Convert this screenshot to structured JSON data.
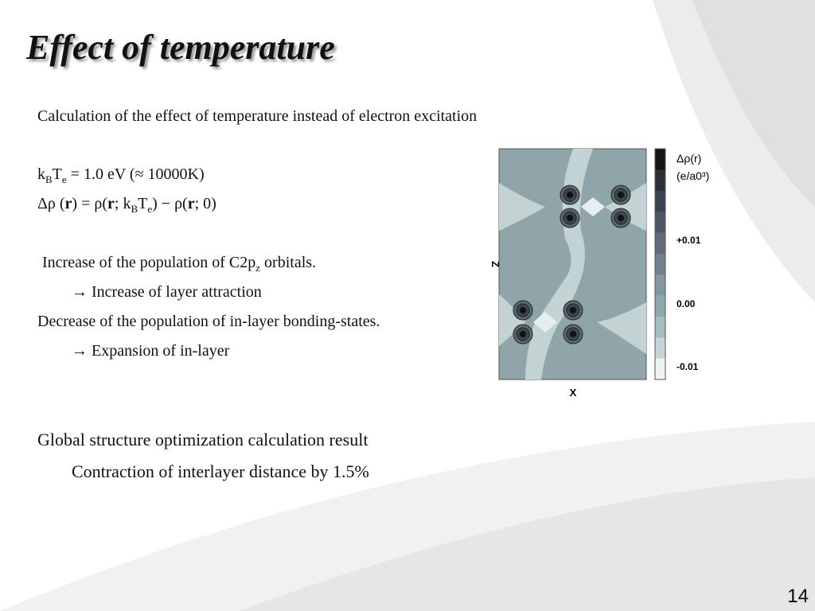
{
  "title": "Effect of temperature",
  "lines": [
    {
      "segments": [
        {
          "text": "Calculation of the effect of temperature instead of electron excitation"
        }
      ]
    },
    {
      "segments": [
        {
          "text": "k"
        },
        {
          "text": "B",
          "sub": true
        },
        {
          "text": "T"
        },
        {
          "text": "e",
          "sub": true
        },
        {
          "text": " = 1.0 eV (≈ 10000K)"
        }
      ]
    },
    {
      "segments": [
        {
          "text": "Δρ ("
        },
        {
          "text": "r",
          "bold": true
        },
        {
          "text": ") = ρ("
        },
        {
          "text": "r",
          "bold": true
        },
        {
          "text": "; k"
        },
        {
          "text": "B",
          "sub": true
        },
        {
          "text": "T"
        },
        {
          "text": "e",
          "sub": true
        },
        {
          "text": ") − ρ("
        },
        {
          "text": "r",
          "bold": true
        },
        {
          "text": "; 0)"
        }
      ]
    },
    {
      "segments": [
        {
          "text": "Increase of the population of C2p"
        },
        {
          "text": "z",
          "sub": true
        },
        {
          "text": " orbitals."
        }
      ]
    },
    {
      "segments": [
        {
          "text": "→ Increase of layer attraction"
        }
      ]
    },
    {
      "segments": [
        {
          "text": "Decrease of the population of in-layer bonding-states."
        }
      ]
    },
    {
      "segments": [
        {
          "text": "→ Expansion of in-layer"
        }
      ]
    },
    {
      "segments": [
        {
          "text": "Global structure optimization calculation result"
        }
      ]
    },
    {
      "segments": [
        {
          "text": "Contraction of interlayer distance by 1.5%"
        }
      ]
    }
  ],
  "figure": {
    "z_axis": "Z",
    "x_axis": "X",
    "colorbar_title": "Δρ(r)",
    "colorbar_unit": "(e/a0³)",
    "colorbar_labels": [
      "+0.01",
      "0.00",
      "-0.01"
    ]
  },
  "page_number": "14"
}
